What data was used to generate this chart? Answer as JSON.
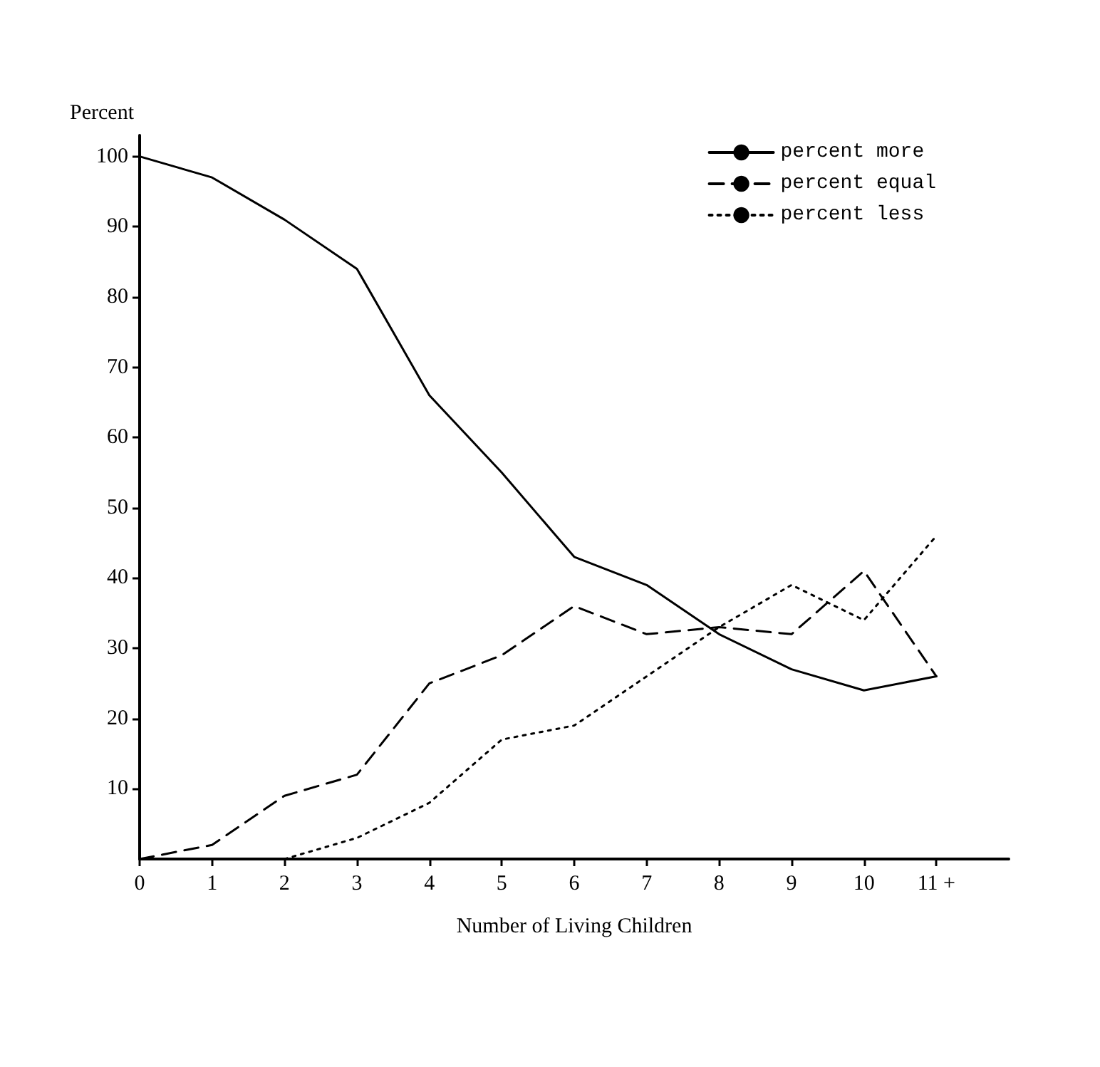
{
  "chart_data": {
    "type": "line",
    "xlabel": "Number of Living Children",
    "ylabel": "Percent",
    "x": [
      0,
      1,
      2,
      3,
      4,
      5,
      6,
      7,
      8,
      9,
      10,
      11
    ],
    "series": [
      {
        "name": "percent more",
        "color": "#000000",
        "line_style": "solid",
        "values": [
          100,
          97,
          91,
          84,
          66,
          55,
          43,
          39,
          32,
          27,
          24,
          26
        ]
      },
      {
        "name": "percent equal",
        "color": "#000000",
        "line_style": "dashed",
        "values": [
          0,
          2,
          9,
          12,
          25,
          29,
          36,
          32,
          33,
          32,
          41,
          26
        ]
      },
      {
        "name": "percent less",
        "color": "#000000",
        "line_style": "dotted",
        "values": [
          null,
          null,
          0,
          3,
          8,
          17,
          19,
          26,
          33,
          39,
          34,
          46
        ]
      }
    ],
    "xlim": [
      0,
      12
    ],
    "ylim": [
      0,
      103
    ],
    "xticks": [
      0,
      1,
      2,
      3,
      4,
      5,
      6,
      7,
      8,
      9,
      10,
      {
        "value": 11,
        "label": "11 +"
      }
    ],
    "yticks": [
      10,
      20,
      30,
      40,
      50,
      60,
      70,
      80,
      90,
      100
    ],
    "grid": false,
    "legend": "top right",
    "marker": "none"
  }
}
